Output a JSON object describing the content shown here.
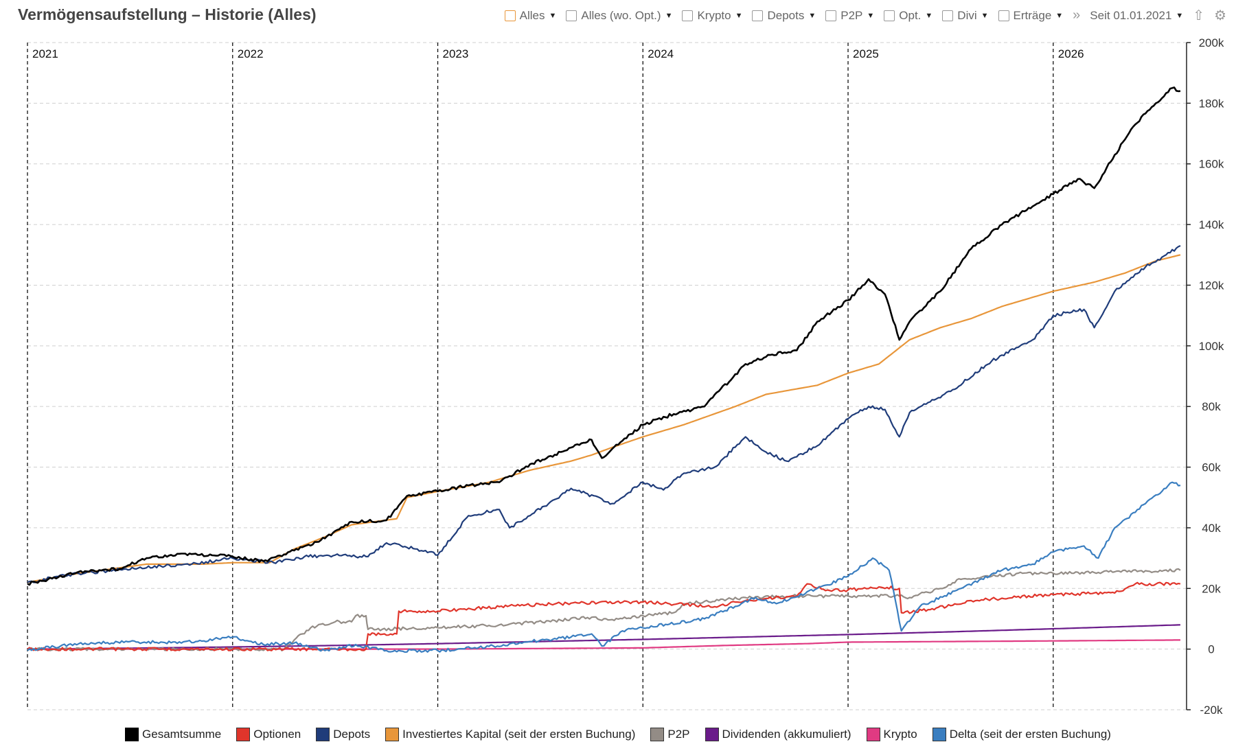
{
  "header": {
    "title": "Vermögensaufstellung – Historie (Alles)",
    "filters": [
      {
        "label": "Alles",
        "checked": true
      },
      {
        "label": "Alles (wo. Opt.)",
        "checked": false
      },
      {
        "label": "Krypto",
        "checked": false
      },
      {
        "label": "Depots",
        "checked": false
      },
      {
        "label": "P2P",
        "checked": false
      },
      {
        "label": "Opt.",
        "checked": false
      },
      {
        "label": "Divi",
        "checked": false
      },
      {
        "label": "Erträge",
        "checked": false
      }
    ],
    "more_icon": "double-chevron-right-icon",
    "date_filter": "Seit 01.01.2021",
    "upload_icon": "upload-icon",
    "settings_icon": "gear-icon"
  },
  "chart_data": {
    "type": "line",
    "x_unit": "year",
    "xlim": [
      2021.0,
      2026.65
    ],
    "ylim": [
      -20000,
      200000
    ],
    "y_ticks": [
      200000,
      180000,
      160000,
      140000,
      120000,
      100000,
      80000,
      60000,
      40000,
      20000,
      0,
      -20000
    ],
    "y_tick_labels": [
      "200k",
      "180k",
      "160k",
      "140k",
      "120k",
      "100k",
      "80k",
      "60k",
      "40k",
      "20k",
      "0",
      "-20k"
    ],
    "year_markers": [
      {
        "x": 2021,
        "label": "2021"
      },
      {
        "x": 2022,
        "label": "2022"
      },
      {
        "x": 2023,
        "label": "2023"
      },
      {
        "x": 2024,
        "label": "2024"
      },
      {
        "x": 2025,
        "label": "2025"
      },
      {
        "x": 2026,
        "label": "2026"
      }
    ],
    "grid": true,
    "legend_position": "bottom",
    "series": [
      {
        "name": "Gesamtsumme",
        "color": "#000000",
        "points": [
          [
            2021.0,
            21500
          ],
          [
            2021.1,
            23000
          ],
          [
            2021.25,
            25500
          ],
          [
            2021.45,
            26500
          ],
          [
            2021.58,
            30000
          ],
          [
            2021.75,
            31500
          ],
          [
            2022.0,
            30500
          ],
          [
            2022.15,
            29000
          ],
          [
            2022.3,
            32500
          ],
          [
            2022.45,
            36500
          ],
          [
            2022.58,
            42000
          ],
          [
            2022.75,
            42500
          ],
          [
            2022.85,
            50500
          ],
          [
            2023.0,
            52000
          ],
          [
            2023.15,
            54000
          ],
          [
            2023.3,
            55000
          ],
          [
            2023.45,
            61000
          ],
          [
            2023.6,
            65000
          ],
          [
            2023.75,
            69000
          ],
          [
            2023.8,
            63000
          ],
          [
            2023.85,
            66000
          ],
          [
            2024.0,
            74000
          ],
          [
            2024.15,
            77500
          ],
          [
            2024.3,
            80000
          ],
          [
            2024.5,
            94000
          ],
          [
            2024.62,
            97000
          ],
          [
            2024.75,
            98500
          ],
          [
            2024.85,
            108000
          ],
          [
            2025.0,
            115000
          ],
          [
            2025.1,
            122000
          ],
          [
            2025.18,
            117000
          ],
          [
            2025.25,
            102000
          ],
          [
            2025.3,
            108000
          ],
          [
            2025.45,
            118000
          ],
          [
            2025.6,
            132000
          ],
          [
            2025.75,
            140000
          ],
          [
            2025.9,
            146000
          ],
          [
            2026.0,
            150000
          ],
          [
            2026.12,
            155000
          ],
          [
            2026.2,
            152000
          ],
          [
            2026.3,
            163000
          ],
          [
            2026.4,
            173000
          ],
          [
            2026.5,
            180000
          ],
          [
            2026.58,
            185000
          ],
          [
            2026.62,
            184000
          ]
        ]
      },
      {
        "name": "Optionen",
        "color": "#e0352b",
        "points": [
          [
            2021.0,
            0
          ],
          [
            2021.5,
            0
          ],
          [
            2021.9,
            0
          ],
          [
            2022.65,
            0
          ],
          [
            2022.66,
            5000
          ],
          [
            2022.8,
            5000
          ],
          [
            2022.81,
            12500
          ],
          [
            2023.0,
            12500
          ],
          [
            2023.3,
            14000
          ],
          [
            2023.6,
            15000
          ],
          [
            2024.0,
            15500
          ],
          [
            2024.35,
            14000
          ],
          [
            2024.5,
            16000
          ],
          [
            2024.75,
            17500
          ],
          [
            2024.8,
            21500
          ],
          [
            2024.9,
            19500
          ],
          [
            2025.0,
            19500
          ],
          [
            2025.15,
            20500
          ],
          [
            2025.25,
            20000
          ],
          [
            2025.26,
            12000
          ],
          [
            2025.4,
            13000
          ],
          [
            2025.6,
            16000
          ],
          [
            2026.0,
            18000
          ],
          [
            2026.3,
            18500
          ],
          [
            2026.4,
            21500
          ],
          [
            2026.62,
            21500
          ]
        ]
      },
      {
        "name": "Depots",
        "color": "#1f3c7a",
        "points": [
          [
            2021.0,
            22000
          ],
          [
            2021.2,
            24500
          ],
          [
            2021.55,
            27000
          ],
          [
            2021.8,
            28000
          ],
          [
            2022.0,
            30000
          ],
          [
            2022.2,
            28500
          ],
          [
            2022.35,
            30500
          ],
          [
            2022.5,
            31000
          ],
          [
            2022.65,
            30500
          ],
          [
            2022.75,
            35000
          ],
          [
            2022.9,
            33000
          ],
          [
            2023.0,
            31000
          ],
          [
            2023.15,
            44000
          ],
          [
            2023.3,
            46000
          ],
          [
            2023.35,
            40000
          ],
          [
            2023.45,
            44000
          ],
          [
            2023.65,
            53000
          ],
          [
            2023.85,
            48000
          ],
          [
            2024.0,
            55000
          ],
          [
            2024.1,
            52500
          ],
          [
            2024.2,
            58000
          ],
          [
            2024.35,
            60000
          ],
          [
            2024.5,
            70000
          ],
          [
            2024.6,
            65000
          ],
          [
            2024.7,
            62000
          ],
          [
            2024.85,
            67000
          ],
          [
            2025.0,
            76000
          ],
          [
            2025.1,
            80000
          ],
          [
            2025.18,
            79000
          ],
          [
            2025.25,
            70000
          ],
          [
            2025.3,
            78000
          ],
          [
            2025.5,
            85000
          ],
          [
            2025.7,
            95000
          ],
          [
            2025.9,
            102000
          ],
          [
            2026.0,
            110000
          ],
          [
            2026.15,
            112000
          ],
          [
            2026.2,
            106000
          ],
          [
            2026.3,
            118000
          ],
          [
            2026.45,
            126000
          ],
          [
            2026.55,
            130000
          ],
          [
            2026.62,
            133000
          ]
        ]
      },
      {
        "name": "Investiertes Kapital (seit der ersten Buchung)",
        "color": "#e8963a",
        "points": [
          [
            2021.0,
            22000
          ],
          [
            2021.2,
            24500
          ],
          [
            2021.58,
            28000
          ],
          [
            2021.85,
            28000
          ],
          [
            2022.0,
            28500
          ],
          [
            2022.18,
            28500
          ],
          [
            2022.3,
            33000
          ],
          [
            2022.45,
            37000
          ],
          [
            2022.58,
            41000
          ],
          [
            2022.8,
            43000
          ],
          [
            2022.85,
            50000
          ],
          [
            2023.0,
            52000
          ],
          [
            2023.25,
            55000
          ],
          [
            2023.45,
            59000
          ],
          [
            2023.65,
            62000
          ],
          [
            2023.75,
            64000
          ],
          [
            2023.85,
            66500
          ],
          [
            2024.0,
            70000
          ],
          [
            2024.2,
            74000
          ],
          [
            2024.45,
            80000
          ],
          [
            2024.6,
            84000
          ],
          [
            2024.85,
            87000
          ],
          [
            2025.0,
            91000
          ],
          [
            2025.15,
            94000
          ],
          [
            2025.3,
            102000
          ],
          [
            2025.45,
            106000
          ],
          [
            2025.6,
            109000
          ],
          [
            2025.75,
            113000
          ],
          [
            2025.9,
            116000
          ],
          [
            2026.0,
            118000
          ],
          [
            2026.2,
            121000
          ],
          [
            2026.35,
            124000
          ],
          [
            2026.5,
            128000
          ],
          [
            2026.62,
            130000
          ]
        ]
      },
      {
        "name": "P2P",
        "color": "#938c86",
        "points": [
          [
            2021.0,
            0
          ],
          [
            2021.5,
            0
          ],
          [
            2022.0,
            0
          ],
          [
            2022.25,
            0
          ],
          [
            2022.3,
            3000
          ],
          [
            2022.38,
            7000
          ],
          [
            2022.5,
            9000
          ],
          [
            2022.58,
            9000
          ],
          [
            2022.6,
            11000
          ],
          [
            2022.65,
            11000
          ],
          [
            2022.66,
            6500
          ],
          [
            2023.0,
            7000
          ],
          [
            2023.3,
            8000
          ],
          [
            2023.6,
            9500
          ],
          [
            2023.75,
            10500
          ],
          [
            2023.8,
            9500
          ],
          [
            2024.0,
            11000
          ],
          [
            2024.15,
            12000
          ],
          [
            2024.2,
            15000
          ],
          [
            2024.5,
            17000
          ],
          [
            2024.75,
            17500
          ],
          [
            2025.0,
            17500
          ],
          [
            2025.25,
            17500
          ],
          [
            2025.3,
            17000
          ],
          [
            2025.45,
            20000
          ],
          [
            2025.55,
            23000
          ],
          [
            2025.7,
            24000
          ],
          [
            2025.85,
            25000
          ],
          [
            2026.0,
            25000
          ],
          [
            2026.3,
            25500
          ],
          [
            2026.62,
            26000
          ]
        ]
      },
      {
        "name": "Dividenden (akkumuliert)",
        "color": "#6a1b8a",
        "points": [
          [
            2021.0,
            0
          ],
          [
            2021.5,
            300
          ],
          [
            2022.0,
            700
          ],
          [
            2022.5,
            1200
          ],
          [
            2023.0,
            1800
          ],
          [
            2023.5,
            2500
          ],
          [
            2024.0,
            3200
          ],
          [
            2024.5,
            4000
          ],
          [
            2025.0,
            4800
          ],
          [
            2025.5,
            5700
          ],
          [
            2026.0,
            6700
          ],
          [
            2026.62,
            8000
          ]
        ]
      },
      {
        "name": "Krypto",
        "color": "#e03a82",
        "points": [
          [
            2021.0,
            0
          ],
          [
            2022.0,
            0
          ],
          [
            2023.0,
            0
          ],
          [
            2023.5,
            200
          ],
          [
            2024.0,
            400
          ],
          [
            2024.4,
            1200
          ],
          [
            2024.8,
            1800
          ],
          [
            2025.0,
            2300
          ],
          [
            2025.5,
            2500
          ],
          [
            2026.0,
            2700
          ],
          [
            2026.62,
            3000
          ]
        ]
      },
      {
        "name": "Delta (seit der ersten Buchung)",
        "color": "#3a7ec0",
        "points": [
          [
            2021.0,
            -500
          ],
          [
            2021.2,
            1500
          ],
          [
            2021.5,
            2500
          ],
          [
            2021.75,
            2000
          ],
          [
            2022.0,
            4000
          ],
          [
            2022.15,
            1500
          ],
          [
            2022.3,
            2000
          ],
          [
            2022.45,
            -500
          ],
          [
            2022.6,
            1500
          ],
          [
            2022.75,
            -500
          ],
          [
            2023.0,
            -500
          ],
          [
            2023.2,
            500
          ],
          [
            2023.45,
            2500
          ],
          [
            2023.65,
            4000
          ],
          [
            2023.75,
            5000
          ],
          [
            2023.8,
            1000
          ],
          [
            2023.9,
            6000
          ],
          [
            2024.0,
            7000
          ],
          [
            2024.3,
            10000
          ],
          [
            2024.55,
            17000
          ],
          [
            2024.65,
            15000
          ],
          [
            2024.85,
            20000
          ],
          [
            2025.0,
            24000
          ],
          [
            2025.12,
            30000
          ],
          [
            2025.2,
            26000
          ],
          [
            2025.26,
            6000
          ],
          [
            2025.35,
            14000
          ],
          [
            2025.55,
            20000
          ],
          [
            2025.75,
            26000
          ],
          [
            2025.9,
            28000
          ],
          [
            2026.0,
            32000
          ],
          [
            2026.15,
            34000
          ],
          [
            2026.22,
            30000
          ],
          [
            2026.3,
            40000
          ],
          [
            2026.45,
            48000
          ],
          [
            2026.58,
            55000
          ],
          [
            2026.62,
            54000
          ]
        ]
      }
    ]
  }
}
